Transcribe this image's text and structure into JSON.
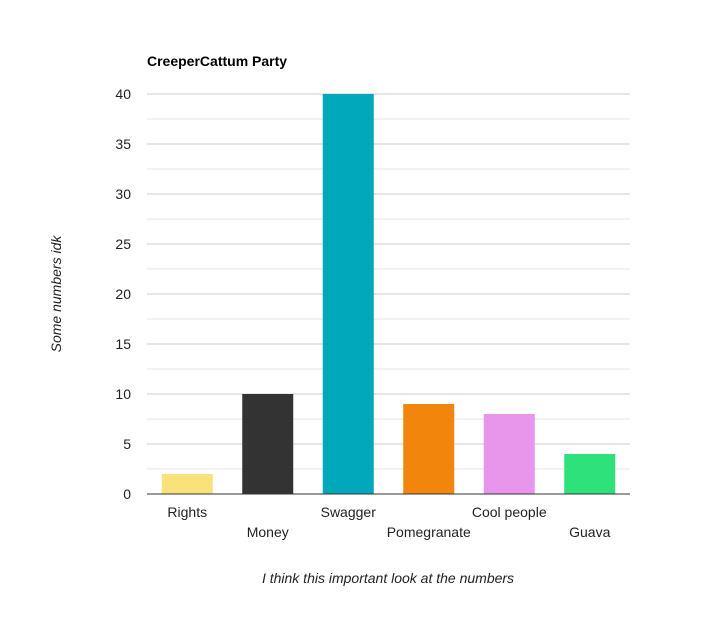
{
  "chart_data": {
    "type": "bar",
    "title": "CreeperCattum Party",
    "xlabel": "I think this important look at the numbers",
    "ylabel": "Some numbers idk",
    "categories": [
      "Rights",
      "Money",
      "Swagger",
      "Pomegranate",
      "Cool people",
      "Guava"
    ],
    "values": [
      2,
      10,
      40,
      9,
      8,
      4
    ],
    "colors": [
      "#f9e27c",
      "#333333",
      "#00a8bc",
      "#f2860c",
      "#e895ec",
      "#2ee17a"
    ],
    "ylim": [
      0,
      40
    ],
    "yticks": [
      0,
      5,
      10,
      15,
      20,
      25,
      30,
      35,
      40
    ],
    "grid": true,
    "legend": "none"
  }
}
